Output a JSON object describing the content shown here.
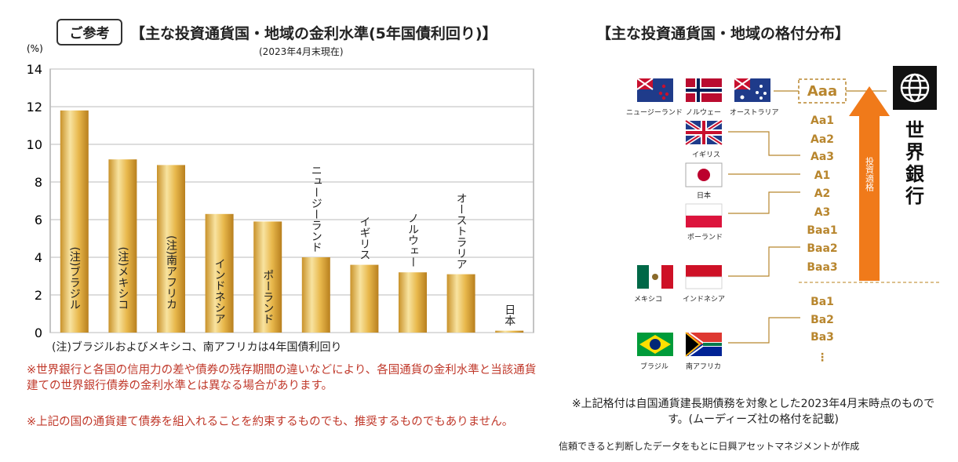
{
  "left": {
    "badge": "ご参考",
    "title": "【主な投資通貨国・地域の金利水準(5年国債利回り)】",
    "subtitle": "(2023年4月末現在)",
    "note": "(注)ブラジルおよびメキシコ、南アフリカは4年国債利回り",
    "warning1": "※世界銀行と各国の信用力の差や債券の残存期間の違いなどにより、各国通貨の金利水準と当該通貨建ての世界銀行債券の金利水準とは異なる場合があります。",
    "warning2": "※上記の国の通貨建て債券を組入れることを約束するものでも、推奨するものでもありません。"
  },
  "chart_data": {
    "type": "bar",
    "title": "【主な投資通貨国・地域の金利水準(5年国債利回り)】",
    "ylabel": "(%)",
    "ylim": [
      0,
      14
    ],
    "yticks": [
      0,
      2,
      4,
      6,
      8,
      10,
      12,
      14
    ],
    "grid": true,
    "categories": [
      "(注)ブラジル",
      "(注)メキシコ",
      "(注)南アフリカ",
      "インドネシア",
      "ポーランド",
      "ニュージーランド",
      "イギリス",
      "ノルウェー",
      "オーストラリア",
      "日本"
    ],
    "values": [
      11.8,
      9.2,
      8.9,
      6.3,
      5.9,
      4.0,
      3.6,
      3.2,
      3.1,
      0.1
    ],
    "colors": {
      "bar": "#e0b040",
      "bar_light": "#f8e3a0",
      "grid": "#bbbbbb"
    }
  },
  "right": {
    "title": "【主な投資通貨国・地域の格付分布】",
    "org": "世界銀行",
    "arrow_label": "投資適格",
    "ratings": [
      "Aaa",
      "Aa1",
      "Aa2",
      "Aa3",
      "A1",
      "A2",
      "A3",
      "Baa1",
      "Baa2",
      "Baa3",
      "Ba1",
      "Ba2",
      "Ba3",
      "⋮"
    ],
    "countries": {
      "nz": "ニュージーランド",
      "norway": "ノルウェー",
      "australia": "オーストラリア",
      "uk": "イギリス",
      "japan": "日本",
      "poland": "ポーランド",
      "mexico": "メキシコ",
      "indonesia": "インドネシア",
      "brazil": "ブラジル",
      "south_africa": "南アフリカ"
    },
    "note": "※上記格付は自国通貨建長期債務を対象とした2023年4月末時点のものです。(ムーディーズ社の格付を記載)",
    "credit": "信頼できると判断したデータをもとに日興アセットマネジメントが作成"
  }
}
